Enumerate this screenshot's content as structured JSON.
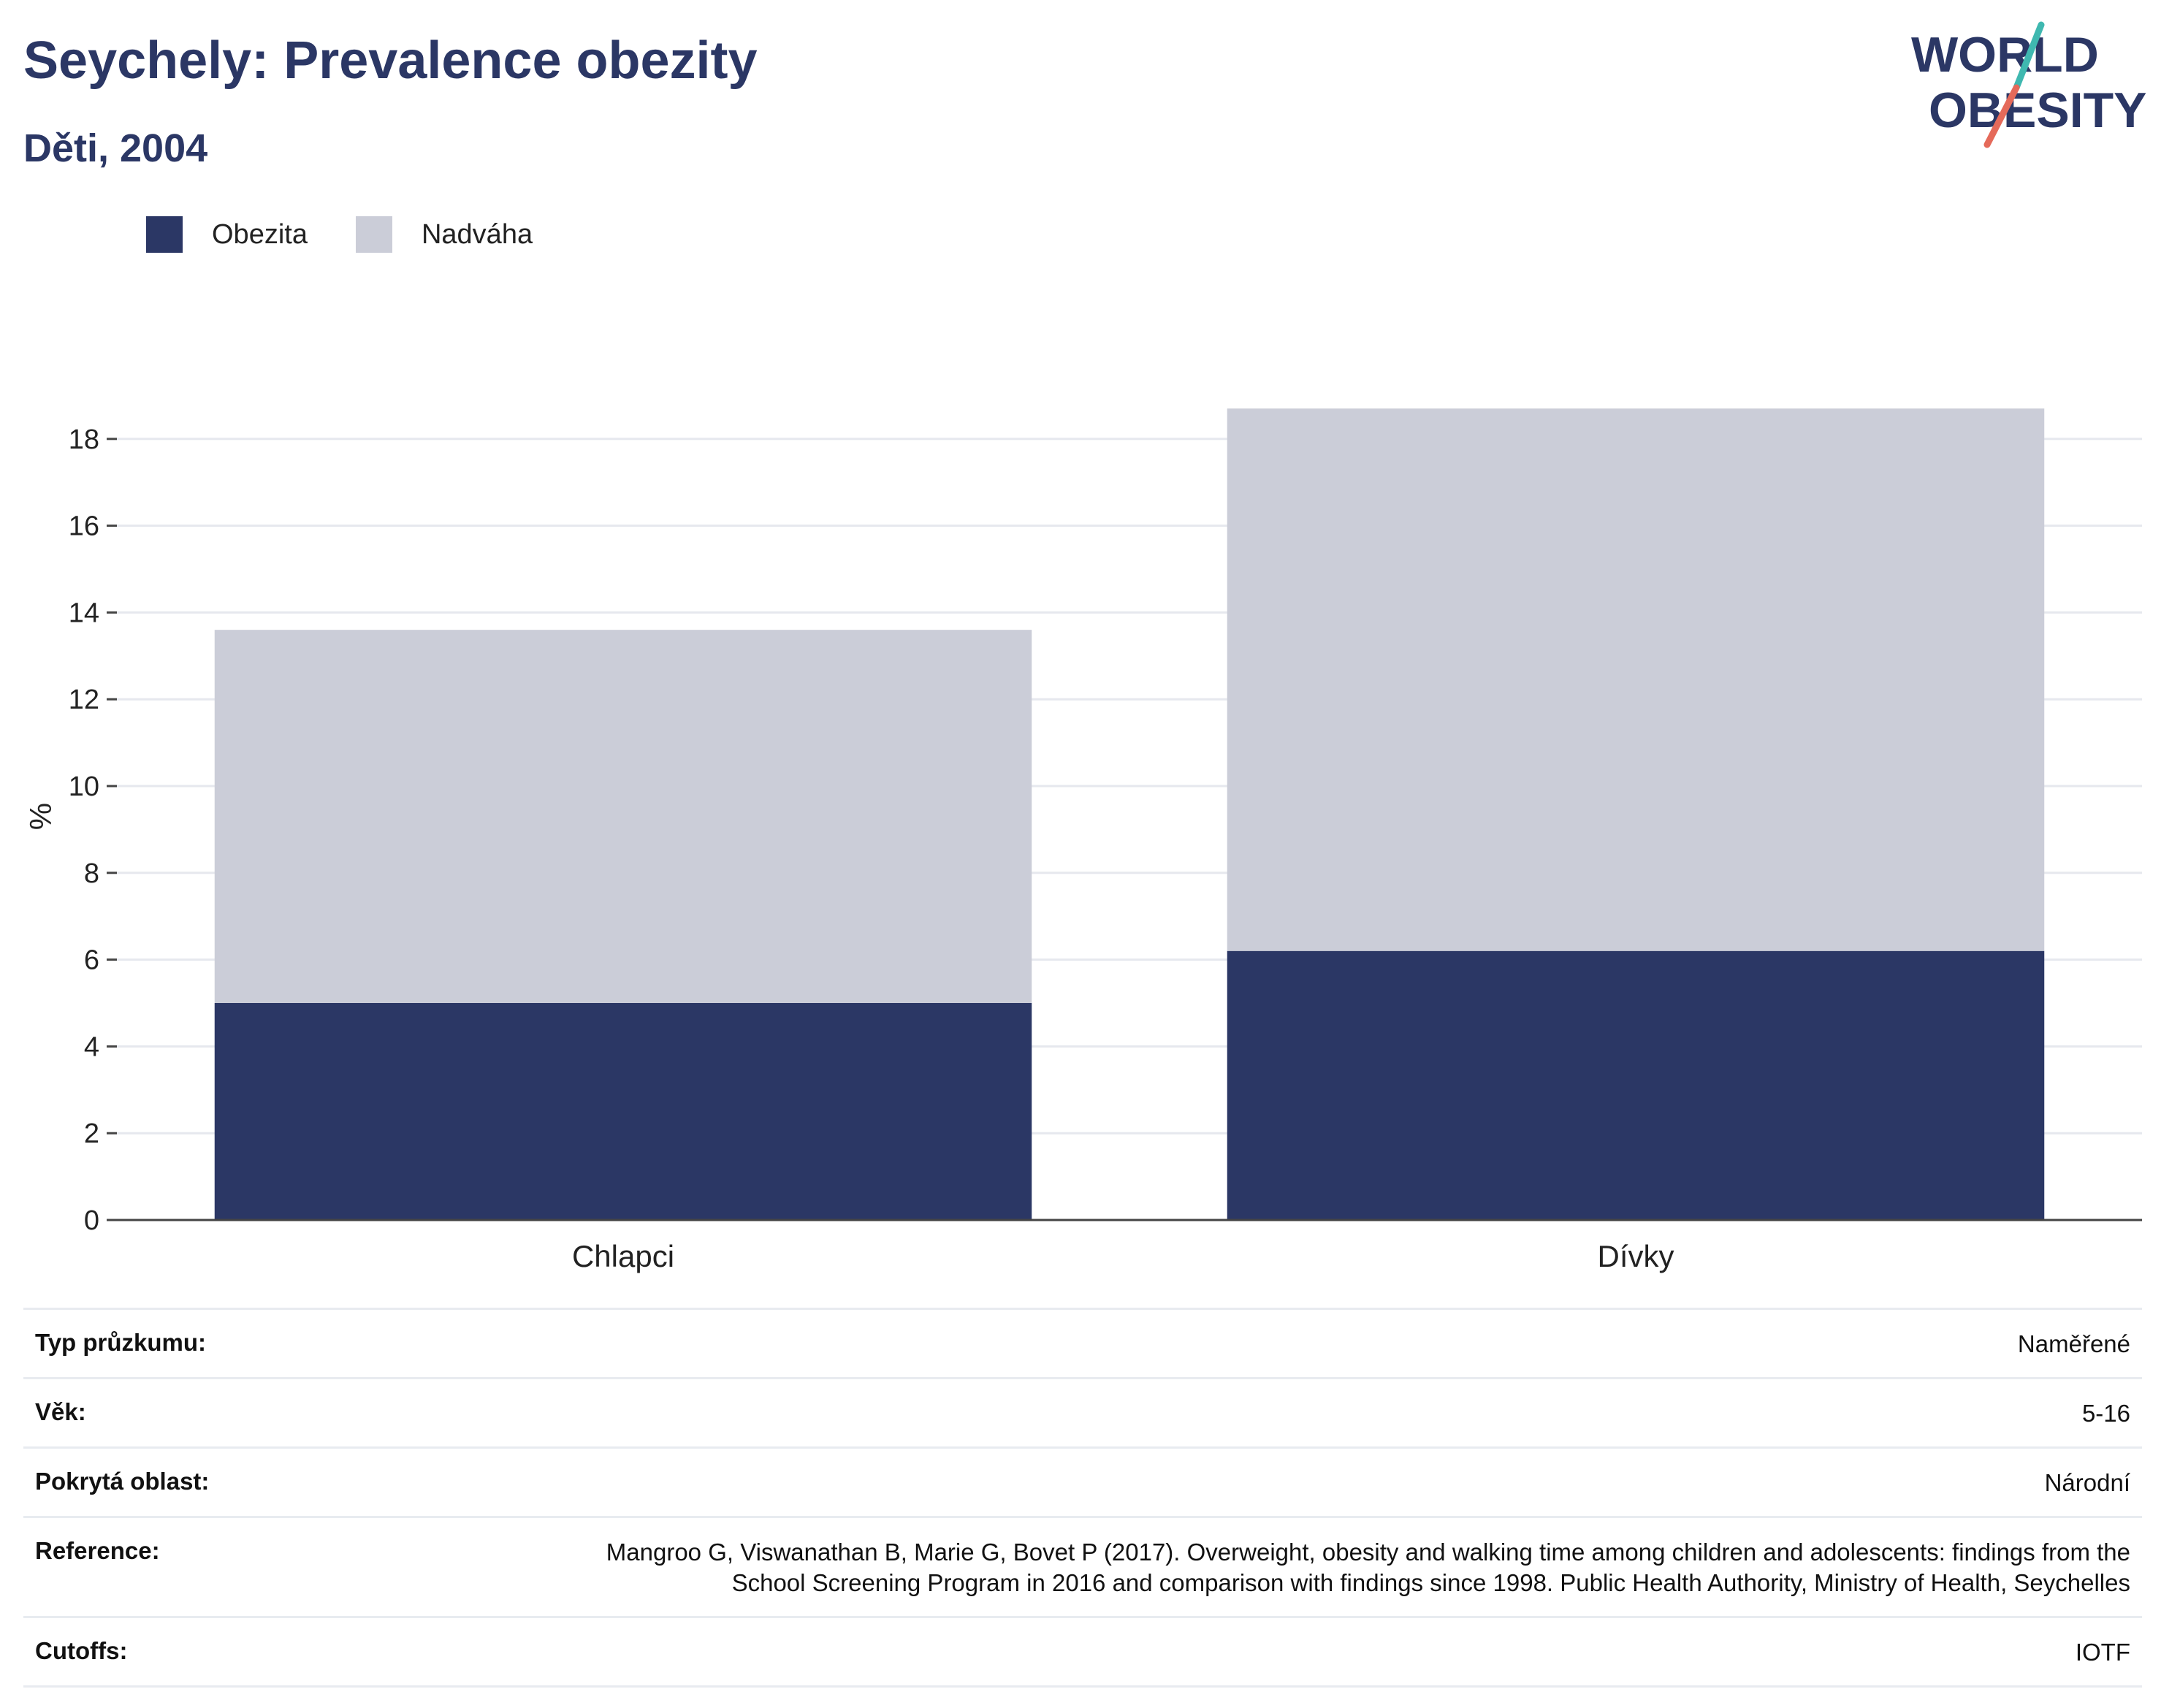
{
  "header": {
    "title": "Seychely: Prevalence obezity",
    "subtitle": "Děti, 2004"
  },
  "logo": {
    "line1": "WORLD",
    "line2": "OBESITY"
  },
  "colors": {
    "obezita": "#2b3765",
    "nadvaha": "#cbcdd8",
    "title": "#2b3765",
    "logo_teal": "#3fb8b0",
    "logo_red": "#e56a5a"
  },
  "chart_data": {
    "type": "bar",
    "stacked": true,
    "categories": [
      "Chlapci",
      "Dívky"
    ],
    "series": [
      {
        "name": "Obezita",
        "values": [
          5.0,
          6.2
        ],
        "color": "#2b3765"
      },
      {
        "name": "Nadváha",
        "values": [
          8.6,
          12.5
        ],
        "color": "#cbcdd8"
      }
    ],
    "ylabel": "%",
    "ylim": [
      0,
      18.7
    ],
    "yticks": [
      0,
      2,
      4,
      6,
      8,
      10,
      12,
      14,
      16,
      18
    ],
    "grid": true,
    "legend_position": "top-left"
  },
  "info": [
    {
      "label": "Typ průzkumu:",
      "value": "Naměřené"
    },
    {
      "label": "Věk:",
      "value": "5-16"
    },
    {
      "label": "Pokrytá oblast:",
      "value": "Národní"
    },
    {
      "label": "Reference:",
      "value": "Mangroo G, Viswanathan B, Marie G, Bovet P (2017). Overweight, obesity and walking time among children and adolescents: findings from the School Screening Program in 2016 and comparison with findings since 1998. Public Health Authority, Ministry of Health, Seychelles"
    },
    {
      "label": "Cutoffs:",
      "value": "IOTF"
    }
  ]
}
